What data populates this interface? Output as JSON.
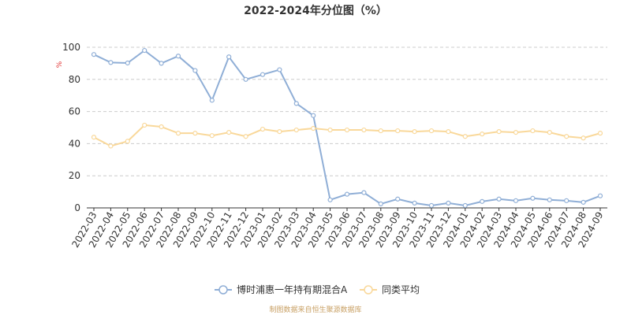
{
  "chart_data": {
    "type": "line",
    "title": "2022-2024年分位图（%）",
    "y_unit": "%",
    "xlabel": "",
    "ylabel": "",
    "ylim": [
      0,
      100
    ],
    "yticks": [
      0,
      20,
      40,
      60,
      80,
      100
    ],
    "grid": true,
    "legend_position": "bottom",
    "categories": [
      "2022-03",
      "2022-04",
      "2022-05",
      "2022-06",
      "2022-07",
      "2022-08",
      "2022-09",
      "2022-10",
      "2022-11",
      "2022-12",
      "2023-01",
      "2023-02",
      "2023-03",
      "2023-04",
      "2023-05",
      "2023-06",
      "2023-07",
      "2023-08",
      "2023-09",
      "2023-10",
      "2023-11",
      "2023-12",
      "2024-01",
      "2024-02",
      "2024-03",
      "2024-04",
      "2024-05",
      "2024-06",
      "2024-07",
      "2024-08",
      "2024-09"
    ],
    "series": [
      {
        "name": "博时浦惠一年持有期混合A",
        "color": "#8faed6",
        "values": [
          95.5,
          90.5,
          90.2,
          98,
          90,
          94.5,
          85.5,
          67,
          94,
          80,
          83,
          86,
          65,
          57.5,
          5,
          8.5,
          9.5,
          2.5,
          5.5,
          3,
          1.5,
          3,
          1.5,
          4,
          5.5,
          4.5,
          6,
          5,
          4.5,
          3.5,
          7.5
        ]
      },
      {
        "name": "同类平均",
        "color": "#f9d89a",
        "values": [
          44,
          38.5,
          41.5,
          51.5,
          50.5,
          46.5,
          46.5,
          45,
          47,
          44.5,
          49,
          47.5,
          48.5,
          49.5,
          48.5,
          48.5,
          48.5,
          48,
          48,
          47.5,
          48,
          47.5,
          44.5,
          46,
          47.5,
          47,
          48,
          47,
          44.5,
          43.5,
          46.5
        ]
      }
    ]
  },
  "footer": {
    "source": "制图数据来自恒生聚源数据库"
  }
}
